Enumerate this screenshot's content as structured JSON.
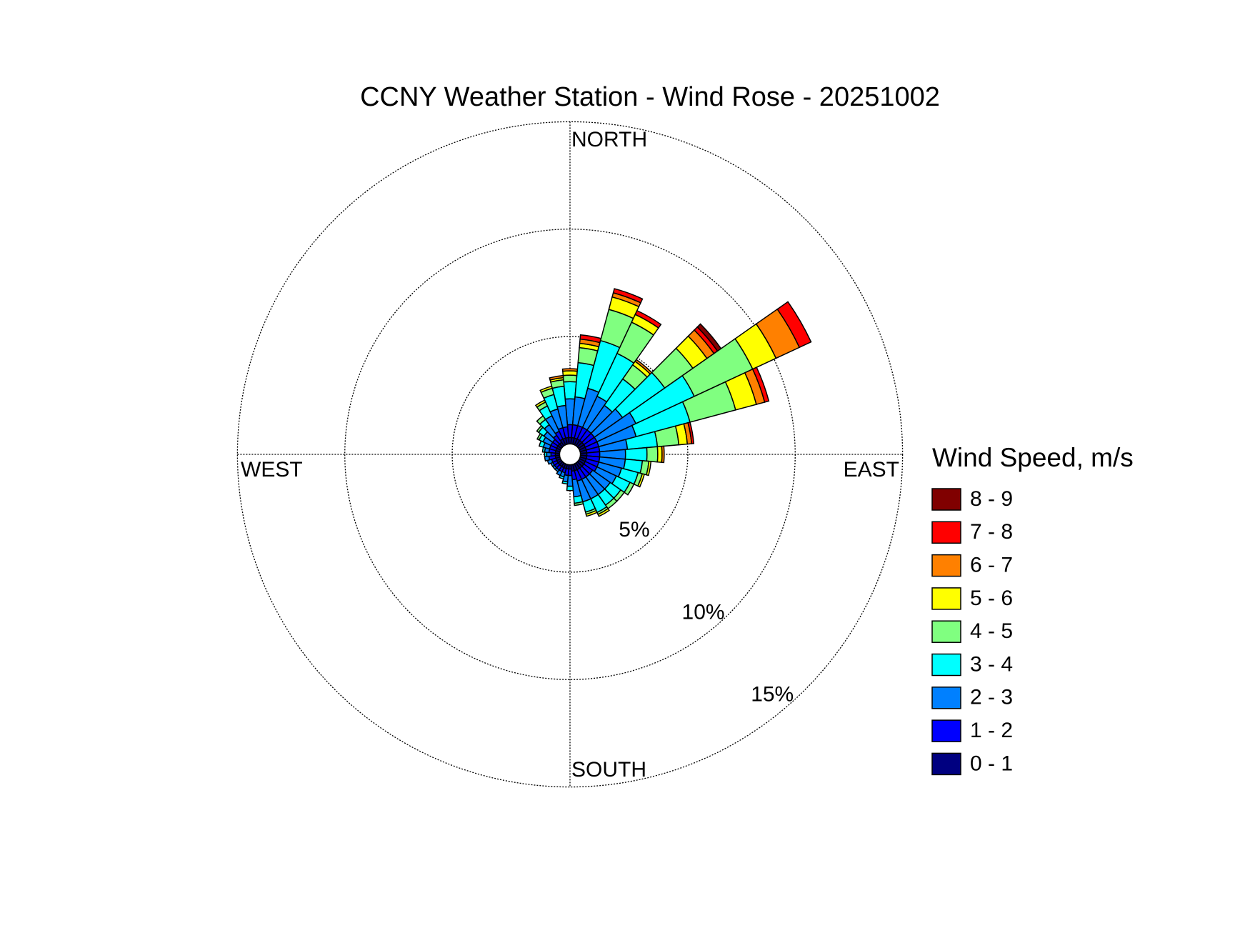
{
  "chart_data": {
    "type": "windrose",
    "title": "CCNY Weather Station - Wind Rose - 20251002",
    "legend_title": "Wind Speed, m/s",
    "compass_labels": [
      "NORTH",
      "EAST",
      "SOUTH",
      "WEST"
    ],
    "directions": [
      0,
      10,
      20,
      30,
      40,
      50,
      60,
      70,
      80,
      90,
      100,
      110,
      120,
      130,
      140,
      150,
      160,
      170,
      180,
      190,
      200,
      210,
      220,
      230,
      240,
      250,
      260,
      270,
      280,
      290,
      300,
      310,
      320,
      330,
      340,
      350
    ],
    "rlim": [
      0,
      15
    ],
    "rticks": [
      {
        "value": 5,
        "label": "5%"
      },
      {
        "value": 10,
        "label": "10%"
      },
      {
        "value": 15,
        "label": "15%"
      }
    ],
    "grid": true,
    "legend": "right",
    "series": [
      {
        "name": "0 - 1",
        "color": "#000080",
        "values": [
          0.3,
          0.3,
          0.3,
          0.3,
          0.3,
          0.3,
          0.3,
          0.3,
          0.3,
          0.3,
          0.3,
          0.3,
          0.3,
          0.3,
          0.3,
          0.3,
          0.3,
          0.3,
          0.2,
          0.2,
          0.2,
          0.2,
          0.2,
          0.2,
          0.2,
          0.2,
          0.2,
          0.2,
          0.2,
          0.2,
          0.2,
          0.2,
          0.2,
          0.3,
          0.3,
          0.3
        ]
      },
      {
        "name": "1 - 2",
        "color": "#0000ff",
        "values": [
          0.6,
          0.6,
          0.6,
          0.6,
          0.6,
          0.6,
          0.6,
          0.6,
          0.6,
          0.6,
          0.6,
          0.6,
          0.6,
          0.5,
          0.5,
          0.5,
          0.5,
          0.4,
          0.3,
          0.3,
          0.2,
          0.2,
          0.2,
          0.2,
          0.2,
          0.2,
          0.3,
          0.2,
          0.3,
          0.3,
          0.3,
          0.3,
          0.4,
          0.4,
          0.5,
          0.5
        ]
      },
      {
        "name": "2 - 3",
        "color": "#0080ff",
        "values": [
          1.2,
          1.3,
          1.8,
          1.6,
          1.4,
          1.6,
          2.0,
          1.8,
          1.3,
          1.2,
          1.2,
          1.1,
          1.0,
          1.0,
          1.0,
          1.0,
          1.0,
          0.8,
          0.5,
          0.3,
          0.2,
          0.2,
          0.1,
          0.1,
          0.1,
          0.2,
          0.2,
          0.2,
          0.2,
          0.3,
          0.4,
          0.5,
          0.6,
          0.8,
          0.9,
          1.0
        ]
      },
      {
        "name": "3 - 4",
        "color": "#00ffff",
        "values": [
          0.8,
          1.6,
          2.3,
          2.2,
          1.5,
          2.4,
          3.0,
          2.6,
          1.4,
          1.0,
          0.8,
          0.8,
          0.7,
          0.6,
          0.6,
          0.7,
          0.5,
          0.3,
          0.2,
          0.1,
          0.1,
          0,
          0,
          0,
          0,
          0,
          0,
          0.1,
          0.1,
          0.2,
          0.2,
          0.3,
          0.3,
          0.5,
          0.7,
          0.9
        ]
      },
      {
        "name": "4 - 5",
        "color": "#80ff80",
        "values": [
          0.3,
          0.7,
          1.5,
          1.6,
          0.8,
          1.6,
          3.0,
          2.2,
          1.0,
          0.5,
          0.3,
          0.2,
          0.2,
          0.2,
          0.2,
          0.1,
          0.1,
          0.1,
          0,
          0,
          0,
          0,
          0,
          0,
          0,
          0,
          0,
          0,
          0,
          0,
          0.1,
          0.1,
          0.2,
          0.2,
          0.3,
          0.3
        ]
      },
      {
        "name": "5 - 6",
        "color": "#ffff00",
        "values": [
          0.2,
          0.2,
          0.6,
          0.4,
          0.2,
          0.8,
          1.2,
          1.0,
          0.4,
          0.2,
          0.1,
          0.1,
          0,
          0,
          0,
          0.1,
          0.1,
          0,
          0,
          0,
          0,
          0,
          0,
          0,
          0,
          0,
          0,
          0,
          0,
          0,
          0,
          0,
          0,
          0.1,
          0.1,
          0.1
        ]
      },
      {
        "name": "6 - 7",
        "color": "#ff8000",
        "values": [
          0.1,
          0.2,
          0.2,
          0,
          0.1,
          0.4,
          1.2,
          0.4,
          0.2,
          0.1,
          0,
          0,
          0,
          0,
          0,
          0,
          0,
          0,
          0,
          0,
          0,
          0,
          0,
          0,
          0,
          0,
          0,
          0,
          0,
          0,
          0,
          0,
          0,
          0,
          0,
          0.1
        ]
      },
      {
        "name": "7 - 8",
        "color": "#ff0000",
        "values": [
          0,
          0.2,
          0.2,
          0.2,
          0,
          0.2,
          0.6,
          0.2,
          0.1,
          0,
          0,
          0,
          0,
          0,
          0,
          0,
          0,
          0,
          0,
          0,
          0,
          0,
          0,
          0,
          0,
          0,
          0,
          0,
          0,
          0,
          0,
          0,
          0,
          0,
          0,
          0
        ]
      },
      {
        "name": "8 - 9",
        "color": "#800000",
        "values": [
          0,
          0,
          0,
          0,
          0,
          0.2,
          0,
          0,
          0,
          0,
          0,
          0,
          0,
          0,
          0,
          0,
          0,
          0,
          0,
          0,
          0,
          0,
          0,
          0,
          0,
          0,
          0,
          0,
          0,
          0,
          0,
          0,
          0,
          0,
          0,
          0
        ]
      }
    ]
  }
}
